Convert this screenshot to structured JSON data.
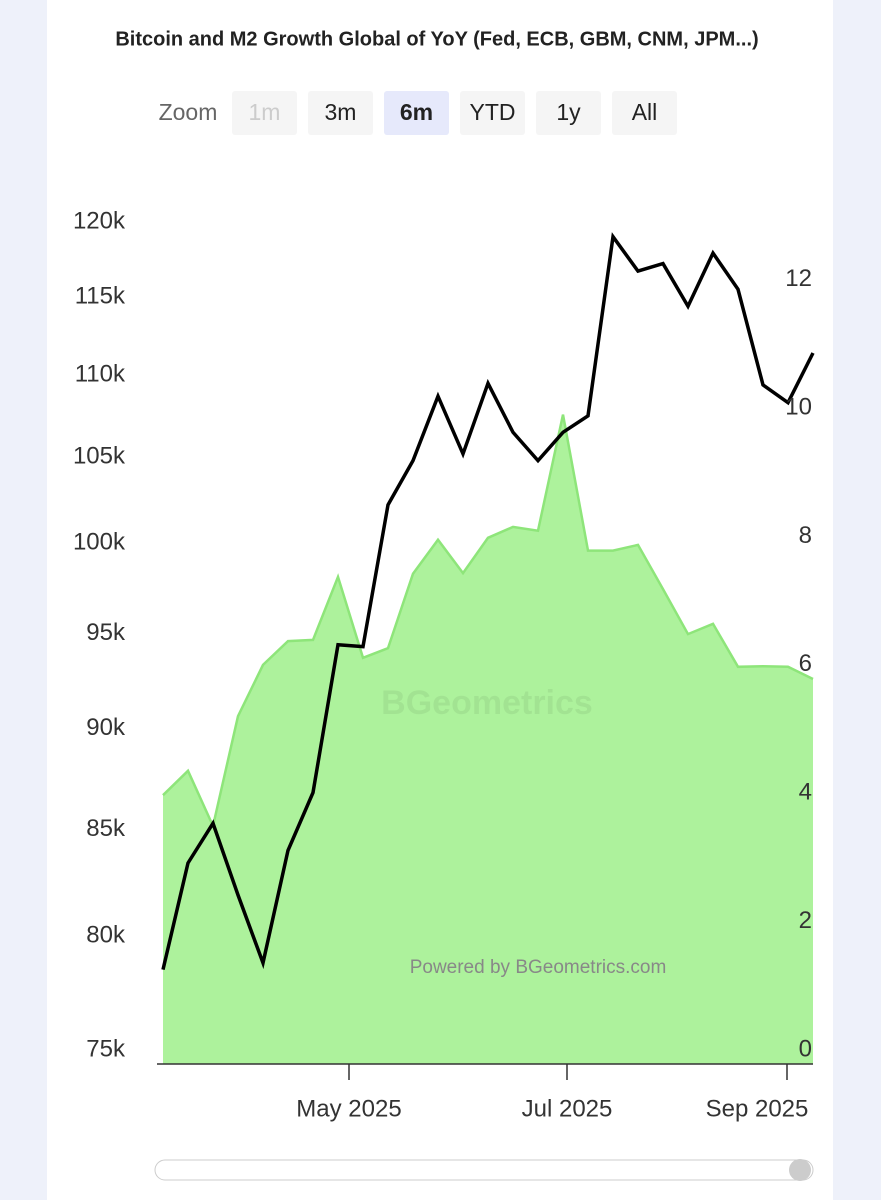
{
  "chart_data": {
    "type": "line-area",
    "title": "Bitcoin and M2 Growth Global of YoY (Fed, ECB, GBM, CNM, JPM...)",
    "zoom": {
      "label": "Zoom",
      "buttons": [
        "1m",
        "3m",
        "6m",
        "YTD",
        "1y",
        "All"
      ],
      "active": 2,
      "disabled": [
        0
      ]
    },
    "watermark": "BGeometrics",
    "credit": "Powered by BGeometrics.com",
    "categories": [
      null,
      null,
      null,
      null,
      null,
      null,
      null,
      null,
      null,
      null,
      null,
      null,
      null,
      null,
      null,
      null,
      null,
      null,
      null,
      null,
      null,
      null,
      null,
      null,
      null,
      null,
      null
    ],
    "xlim": [
      -0.24,
      26
    ],
    "xticks": [
      {
        "value": 7.44,
        "label": "May 2025"
      },
      {
        "value": 16.16,
        "label": "Jul 2025"
      },
      {
        "value": 24.96,
        "label": "Sep 2025"
      }
    ],
    "ylim": [
      75000,
      120000
    ],
    "yscale": "log",
    "yticks": [
      {
        "value": 75000,
        "label": "75k"
      },
      {
        "value": 80000,
        "label": "80k"
      },
      {
        "value": 85000,
        "label": "85k"
      },
      {
        "value": 90000,
        "label": "90k"
      },
      {
        "value": 95000,
        "label": "95k"
      },
      {
        "value": 100000,
        "label": "100k"
      },
      {
        "value": 105000,
        "label": "105k"
      },
      {
        "value": 110000,
        "label": "110k"
      },
      {
        "value": 115000,
        "label": "115k"
      },
      {
        "value": 120000,
        "label": "120k"
      }
    ],
    "y2lim": [
      0,
      12.9
    ],
    "y2ticks": [
      0,
      2,
      4,
      6,
      8,
      10,
      12
    ],
    "series": [
      {
        "name": "M2 Growth YoY",
        "kind": "area",
        "axis": "y2",
        "color": "#adf29c",
        "stroke": "#8ee57a",
        "values": [
          3.97,
          4.35,
          3.49,
          5.2,
          6.0,
          6.37,
          6.39,
          7.37,
          6.11,
          6.26,
          7.42,
          7.95,
          7.43,
          7.98,
          8.15,
          8.09,
          9.9,
          7.78,
          7.78,
          7.87,
          7.18,
          6.48,
          6.64,
          5.97,
          5.98,
          5.97,
          5.78
        ]
      },
      {
        "name": "Bitcoin",
        "kind": "line",
        "axis": "y",
        "color": "#000000",
        "values": [
          78500,
          83400,
          85300,
          81900,
          78800,
          84000,
          86800,
          94400,
          94300,
          102200,
          104800,
          108700,
          105200,
          109500,
          106500,
          104800,
          106500,
          107500,
          119000,
          116700,
          117200,
          114400,
          117900,
          115500,
          109400,
          108300,
          111400
        ]
      }
    ]
  }
}
